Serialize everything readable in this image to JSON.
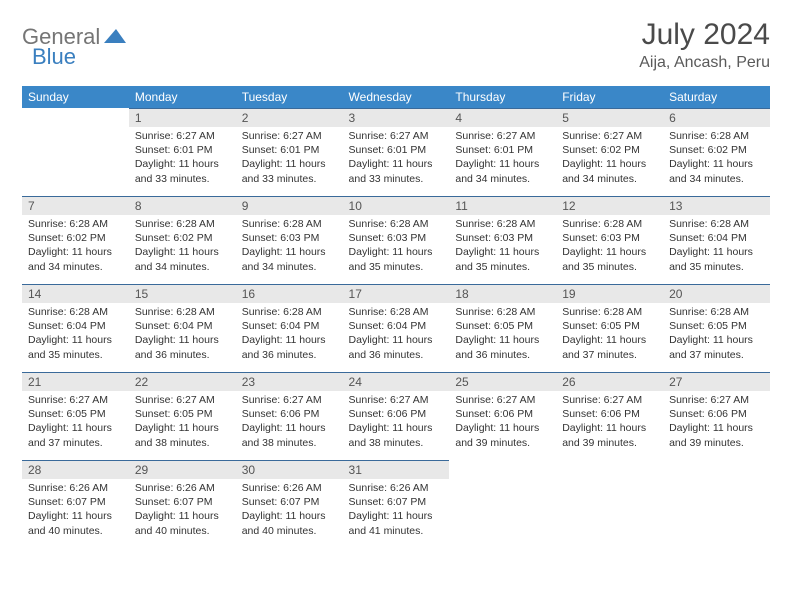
{
  "brand": {
    "part1": "General",
    "part2": "Blue"
  },
  "title": "July 2024",
  "location": "Aija, Ancash, Peru",
  "colors": {
    "header_bg": "#3a87c8",
    "header_text": "#ffffff",
    "daynum_bg": "#e8e8e8",
    "row_border": "#3a6a9a",
    "logo_gray": "#757575",
    "logo_blue": "#3a7fbf"
  },
  "weekdays": [
    "Sunday",
    "Monday",
    "Tuesday",
    "Wednesday",
    "Thursday",
    "Friday",
    "Saturday"
  ],
  "weeks": [
    [
      null,
      {
        "n": "1",
        "sr": "Sunrise: 6:27 AM",
        "ss": "Sunset: 6:01 PM",
        "dl": "Daylight: 11 hours and 33 minutes."
      },
      {
        "n": "2",
        "sr": "Sunrise: 6:27 AM",
        "ss": "Sunset: 6:01 PM",
        "dl": "Daylight: 11 hours and 33 minutes."
      },
      {
        "n": "3",
        "sr": "Sunrise: 6:27 AM",
        "ss": "Sunset: 6:01 PM",
        "dl": "Daylight: 11 hours and 33 minutes."
      },
      {
        "n": "4",
        "sr": "Sunrise: 6:27 AM",
        "ss": "Sunset: 6:01 PM",
        "dl": "Daylight: 11 hours and 34 minutes."
      },
      {
        "n": "5",
        "sr": "Sunrise: 6:27 AM",
        "ss": "Sunset: 6:02 PM",
        "dl": "Daylight: 11 hours and 34 minutes."
      },
      {
        "n": "6",
        "sr": "Sunrise: 6:28 AM",
        "ss": "Sunset: 6:02 PM",
        "dl": "Daylight: 11 hours and 34 minutes."
      }
    ],
    [
      {
        "n": "7",
        "sr": "Sunrise: 6:28 AM",
        "ss": "Sunset: 6:02 PM",
        "dl": "Daylight: 11 hours and 34 minutes."
      },
      {
        "n": "8",
        "sr": "Sunrise: 6:28 AM",
        "ss": "Sunset: 6:02 PM",
        "dl": "Daylight: 11 hours and 34 minutes."
      },
      {
        "n": "9",
        "sr": "Sunrise: 6:28 AM",
        "ss": "Sunset: 6:03 PM",
        "dl": "Daylight: 11 hours and 34 minutes."
      },
      {
        "n": "10",
        "sr": "Sunrise: 6:28 AM",
        "ss": "Sunset: 6:03 PM",
        "dl": "Daylight: 11 hours and 35 minutes."
      },
      {
        "n": "11",
        "sr": "Sunrise: 6:28 AM",
        "ss": "Sunset: 6:03 PM",
        "dl": "Daylight: 11 hours and 35 minutes."
      },
      {
        "n": "12",
        "sr": "Sunrise: 6:28 AM",
        "ss": "Sunset: 6:03 PM",
        "dl": "Daylight: 11 hours and 35 minutes."
      },
      {
        "n": "13",
        "sr": "Sunrise: 6:28 AM",
        "ss": "Sunset: 6:04 PM",
        "dl": "Daylight: 11 hours and 35 minutes."
      }
    ],
    [
      {
        "n": "14",
        "sr": "Sunrise: 6:28 AM",
        "ss": "Sunset: 6:04 PM",
        "dl": "Daylight: 11 hours and 35 minutes."
      },
      {
        "n": "15",
        "sr": "Sunrise: 6:28 AM",
        "ss": "Sunset: 6:04 PM",
        "dl": "Daylight: 11 hours and 36 minutes."
      },
      {
        "n": "16",
        "sr": "Sunrise: 6:28 AM",
        "ss": "Sunset: 6:04 PM",
        "dl": "Daylight: 11 hours and 36 minutes."
      },
      {
        "n": "17",
        "sr": "Sunrise: 6:28 AM",
        "ss": "Sunset: 6:04 PM",
        "dl": "Daylight: 11 hours and 36 minutes."
      },
      {
        "n": "18",
        "sr": "Sunrise: 6:28 AM",
        "ss": "Sunset: 6:05 PM",
        "dl": "Daylight: 11 hours and 36 minutes."
      },
      {
        "n": "19",
        "sr": "Sunrise: 6:28 AM",
        "ss": "Sunset: 6:05 PM",
        "dl": "Daylight: 11 hours and 37 minutes."
      },
      {
        "n": "20",
        "sr": "Sunrise: 6:28 AM",
        "ss": "Sunset: 6:05 PM",
        "dl": "Daylight: 11 hours and 37 minutes."
      }
    ],
    [
      {
        "n": "21",
        "sr": "Sunrise: 6:27 AM",
        "ss": "Sunset: 6:05 PM",
        "dl": "Daylight: 11 hours and 37 minutes."
      },
      {
        "n": "22",
        "sr": "Sunrise: 6:27 AM",
        "ss": "Sunset: 6:05 PM",
        "dl": "Daylight: 11 hours and 38 minutes."
      },
      {
        "n": "23",
        "sr": "Sunrise: 6:27 AM",
        "ss": "Sunset: 6:06 PM",
        "dl": "Daylight: 11 hours and 38 minutes."
      },
      {
        "n": "24",
        "sr": "Sunrise: 6:27 AM",
        "ss": "Sunset: 6:06 PM",
        "dl": "Daylight: 11 hours and 38 minutes."
      },
      {
        "n": "25",
        "sr": "Sunrise: 6:27 AM",
        "ss": "Sunset: 6:06 PM",
        "dl": "Daylight: 11 hours and 39 minutes."
      },
      {
        "n": "26",
        "sr": "Sunrise: 6:27 AM",
        "ss": "Sunset: 6:06 PM",
        "dl": "Daylight: 11 hours and 39 minutes."
      },
      {
        "n": "27",
        "sr": "Sunrise: 6:27 AM",
        "ss": "Sunset: 6:06 PM",
        "dl": "Daylight: 11 hours and 39 minutes."
      }
    ],
    [
      {
        "n": "28",
        "sr": "Sunrise: 6:26 AM",
        "ss": "Sunset: 6:07 PM",
        "dl": "Daylight: 11 hours and 40 minutes."
      },
      {
        "n": "29",
        "sr": "Sunrise: 6:26 AM",
        "ss": "Sunset: 6:07 PM",
        "dl": "Daylight: 11 hours and 40 minutes."
      },
      {
        "n": "30",
        "sr": "Sunrise: 6:26 AM",
        "ss": "Sunset: 6:07 PM",
        "dl": "Daylight: 11 hours and 40 minutes."
      },
      {
        "n": "31",
        "sr": "Sunrise: 6:26 AM",
        "ss": "Sunset: 6:07 PM",
        "dl": "Daylight: 11 hours and 41 minutes."
      },
      null,
      null,
      null
    ]
  ]
}
